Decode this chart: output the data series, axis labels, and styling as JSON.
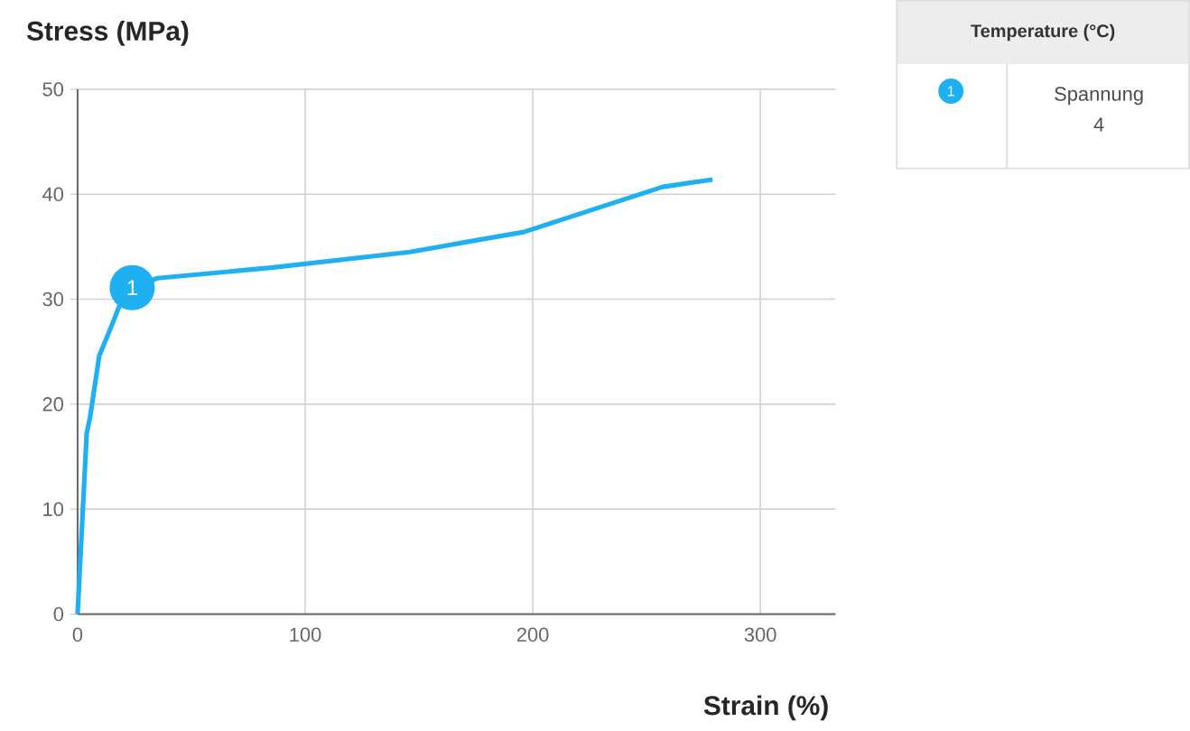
{
  "chart_data": {
    "type": "line",
    "xlabel": "Strain (%)",
    "ylabel": "Stress (MPa)",
    "legend_title": "Temperature (°C)",
    "legend": "right",
    "grid": true,
    "xlim": [
      0,
      333
    ],
    "ylim": [
      0,
      50
    ],
    "xticks": [
      0,
      100,
      200,
      300
    ],
    "yticks": [
      0,
      10,
      20,
      30,
      40,
      50
    ],
    "series": [
      {
        "name": "Spannung 4",
        "color": "#1eb0f0",
        "x": [
          0,
          1.6,
          4,
          5.6,
          9.5,
          15,
          19,
          24,
          35,
          85,
          146,
          196,
          257,
          279
        ],
        "values": [
          0,
          6.9,
          17.2,
          18.9,
          24.6,
          27.5,
          29.7,
          31.1,
          32,
          33,
          34.5,
          36.4,
          40.7,
          41.4
        ]
      }
    ],
    "annotations": [
      {
        "text": "1",
        "x": 24,
        "y": 31.1
      }
    ]
  }
}
